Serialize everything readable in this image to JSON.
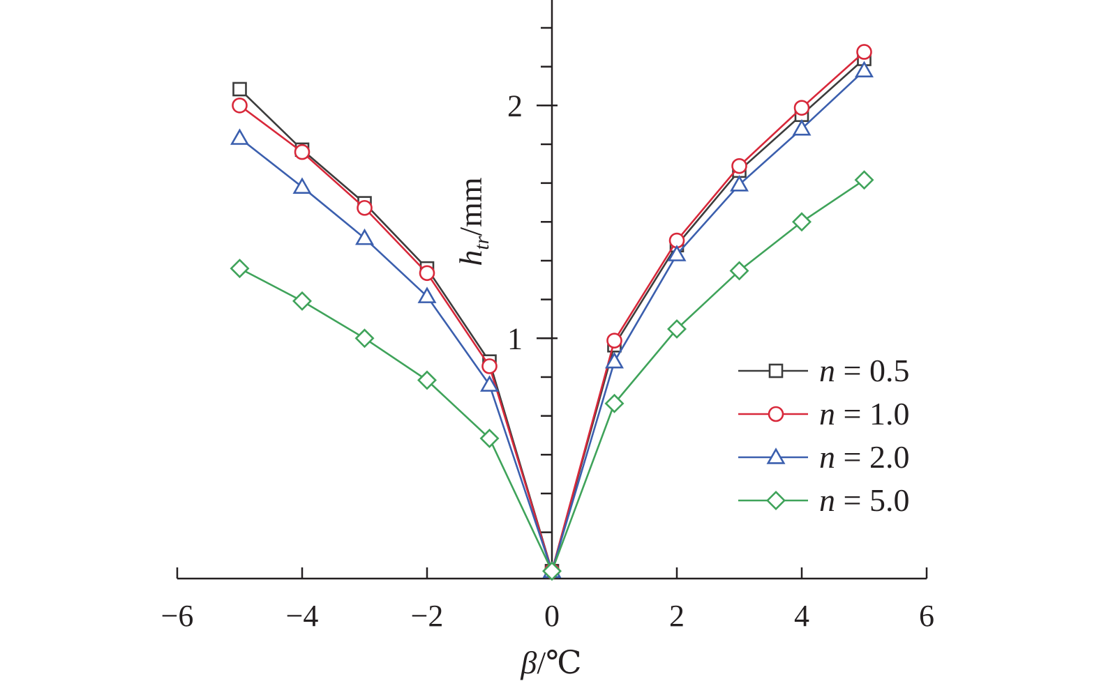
{
  "chart_data": {
    "type": "line",
    "xlabel_symbol": "β",
    "xlabel_unit": "/℃",
    "ylabel_symbol": "h",
    "ylabel_sub": "tr",
    "ylabel_unit": "/mm",
    "xlim": [
      -6,
      6
    ],
    "ylim": [
      0,
      2.5
    ],
    "xticks": [
      -6,
      -4,
      -2,
      0,
      2,
      4,
      6
    ],
    "xtick_labels": [
      "−6",
      "−4",
      "−2",
      "0",
      "2",
      "4",
      "6"
    ],
    "yticks_labeled": [
      1,
      2
    ],
    "ytick_labels": [
      "1",
      "2"
    ],
    "ytick_minor_step": 0.1666667,
    "grid": false,
    "legend_position": "bottom-right",
    "x": [
      -5,
      -4,
      -3,
      -2,
      -1,
      0,
      1,
      2,
      3,
      4,
      5
    ],
    "series": [
      {
        "name_var": "n",
        "name_eq": " = ",
        "name_val": "0.5",
        "marker": "square",
        "color": "#3c3c3c",
        "values": [
          2.07,
          1.81,
          1.58,
          1.3,
          0.9,
          0,
          0.97,
          1.4,
          1.72,
          1.96,
          2.2
        ]
      },
      {
        "name_var": "n",
        "name_eq": " = ",
        "name_val": "1.0",
        "marker": "circle",
        "color": "#d8283a",
        "values": [
          2.0,
          1.8,
          1.56,
          1.28,
          0.88,
          0,
          0.99,
          1.42,
          1.74,
          1.99,
          2.23
        ]
      },
      {
        "name_var": "n",
        "name_eq": " = ",
        "name_val": "2.0",
        "marker": "triangle",
        "color": "#3b5fae",
        "values": [
          1.86,
          1.65,
          1.43,
          1.18,
          0.8,
          0,
          0.9,
          1.36,
          1.66,
          1.9,
          2.15
        ]
      },
      {
        "name_var": "n",
        "name_eq": " = ",
        "name_val": "5.0",
        "marker": "diamond",
        "color": "#3fa35a",
        "values": [
          1.3,
          1.16,
          1.0,
          0.82,
          0.57,
          0,
          0.72,
          1.04,
          1.29,
          1.5,
          1.68
        ]
      }
    ]
  }
}
